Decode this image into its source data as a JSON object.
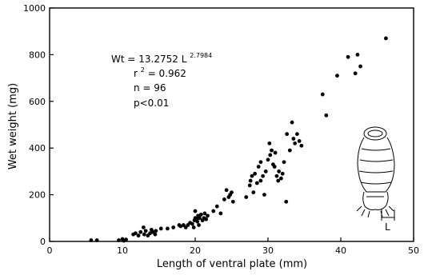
{
  "chart_data": {
    "type": "scatter",
    "xlabel": "Length of ventral plate (mm)",
    "ylabel": "Wet weight (mg)",
    "xlim": [
      0,
      50
    ],
    "ylim": [
      0,
      1000
    ],
    "xticks": [
      "0",
      "10",
      "20",
      "30",
      "40",
      "50"
    ],
    "yticks": [
      "0",
      "200",
      "400",
      "600",
      "800",
      "1000"
    ],
    "annotations": {
      "equation_base": "Wt = 13.2752 L",
      "equation_exponent": "2.7984",
      "r2_prefix": "r",
      "r2_exp": "2",
      "r2_value": "= 0.962",
      "n": "n = 96",
      "p": "p<0.01"
    },
    "inset_label": "L",
    "points": [
      [
        5.7,
        5
      ],
      [
        6.5,
        5
      ],
      [
        9.5,
        5
      ],
      [
        10,
        10
      ],
      [
        10.5,
        8
      ],
      [
        10.2,
        3
      ],
      [
        11.5,
        30
      ],
      [
        11.8,
        35
      ],
      [
        12.2,
        25
      ],
      [
        12.5,
        40
      ],
      [
        12.9,
        60
      ],
      [
        13,
        30
      ],
      [
        13.2,
        45
      ],
      [
        13.5,
        25
      ],
      [
        13.8,
        35
      ],
      [
        14,
        50
      ],
      [
        14.2,
        40
      ],
      [
        14.5,
        30
      ],
      [
        14.6,
        45
      ],
      [
        15.3,
        55
      ],
      [
        16.2,
        55
      ],
      [
        17,
        60
      ],
      [
        17.8,
        70
      ],
      [
        18,
        65
      ],
      [
        18.4,
        70
      ],
      [
        18.7,
        60
      ],
      [
        19,
        70
      ],
      [
        19.3,
        80
      ],
      [
        19.6,
        75
      ],
      [
        19.8,
        60
      ],
      [
        19.9,
        90
      ],
      [
        20,
        100
      ],
      [
        20,
        130
      ],
      [
        20.2,
        95
      ],
      [
        20.3,
        85
      ],
      [
        20.4,
        110
      ],
      [
        20.5,
        70
      ],
      [
        20.6,
        100
      ],
      [
        20.8,
        115
      ],
      [
        21,
        90
      ],
      [
        21.2,
        100
      ],
      [
        21.3,
        120
      ],
      [
        21.5,
        95
      ],
      [
        21.7,
        110
      ],
      [
        22.5,
        130
      ],
      [
        23,
        150
      ],
      [
        23.5,
        120
      ],
      [
        24,
        180
      ],
      [
        24.3,
        220
      ],
      [
        24.6,
        190
      ],
      [
        24.8,
        200
      ],
      [
        25,
        210
      ],
      [
        25.2,
        170
      ],
      [
        27,
        190
      ],
      [
        27.5,
        240
      ],
      [
        27.6,
        260
      ],
      [
        27.8,
        280
      ],
      [
        28,
        210
      ],
      [
        28.2,
        290
      ],
      [
        28.5,
        250
      ],
      [
        28.7,
        320
      ],
      [
        29,
        340
      ],
      [
        29,
        260
      ],
      [
        29.3,
        280
      ],
      [
        29.5,
        200
      ],
      [
        29.7,
        300
      ],
      [
        30,
        350
      ],
      [
        30.2,
        420
      ],
      [
        30.3,
        370
      ],
      [
        30.5,
        390
      ],
      [
        30.7,
        330
      ],
      [
        31,
        380
      ],
      [
        31.2,
        280
      ],
      [
        31.4,
        260
      ],
      [
        31.5,
        300
      ],
      [
        31.8,
        270
      ],
      [
        32,
        290
      ],
      [
        32.2,
        340
      ],
      [
        32.5,
        170
      ],
      [
        32.6,
        460
      ],
      [
        33,
        390
      ],
      [
        33.3,
        510
      ],
      [
        33.5,
        440
      ],
      [
        33.7,
        420
      ],
      [
        34,
        460
      ],
      [
        34.3,
        430
      ],
      [
        34.6,
        410
      ],
      [
        37.5,
        630
      ],
      [
        38,
        540
      ],
      [
        39.5,
        710
      ],
      [
        41,
        790
      ],
      [
        42,
        720
      ],
      [
        42.3,
        800
      ],
      [
        42.7,
        750
      ],
      [
        46.2,
        870
      ],
      [
        30.9,
        320
      ]
    ]
  }
}
